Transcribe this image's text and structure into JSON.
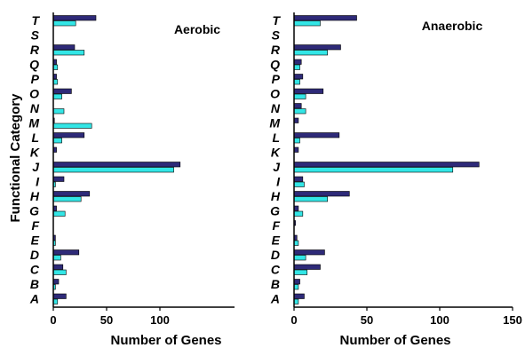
{
  "chart_data": [
    {
      "type": "bar",
      "orientation": "horizontal",
      "title": "Aerobic",
      "xlabel": "Number of Genes",
      "ylabel": "Functional Category",
      "categories": [
        "T",
        "S",
        "R",
        "Q",
        "P",
        "O",
        "N",
        "M",
        "L",
        "K",
        "J",
        "I",
        "H",
        "G",
        "F",
        "E",
        "D",
        "C",
        "B",
        "A"
      ],
      "xlim": [
        0,
        120
      ],
      "xticks": [
        0,
        50,
        100
      ],
      "grid": false,
      "series": [
        {
          "color": "#2e2a78",
          "values": [
            40,
            0,
            20,
            3,
            3,
            17,
            0,
            1,
            29,
            3,
            119,
            10,
            34,
            3,
            0,
            2,
            24,
            9,
            5,
            12
          ]
        },
        {
          "color": "#33e6e6",
          "values": [
            21,
            0,
            29,
            4,
            4,
            8,
            10,
            36,
            8,
            0,
            113,
            2,
            26,
            11,
            0,
            2,
            7,
            12,
            2,
            4
          ]
        }
      ]
    },
    {
      "type": "bar",
      "orientation": "horizontal",
      "title": "Anaerobic",
      "xlabel": "Number of Genes",
      "ylabel": "",
      "categories": [
        "T",
        "S",
        "R",
        "Q",
        "P",
        "O",
        "N",
        "M",
        "L",
        "K",
        "J",
        "I",
        "H",
        "G",
        "F",
        "E",
        "D",
        "C",
        "B",
        "A"
      ],
      "xlim": [
        0,
        150
      ],
      "xticks": [
        0,
        50,
        100,
        150
      ],
      "grid": false,
      "series": [
        {
          "color": "#2e2a78",
          "values": [
            43,
            0,
            32,
            5,
            6,
            20,
            5,
            3,
            31,
            3,
            127,
            6,
            38,
            3,
            1,
            2,
            21,
            18,
            4,
            7
          ]
        },
        {
          "color": "#33e6e6",
          "values": [
            18,
            0,
            23,
            4,
            4,
            8,
            8,
            0,
            4,
            0,
            109,
            7,
            23,
            6,
            0,
            3,
            8,
            9,
            3,
            3
          ]
        }
      ]
    }
  ]
}
